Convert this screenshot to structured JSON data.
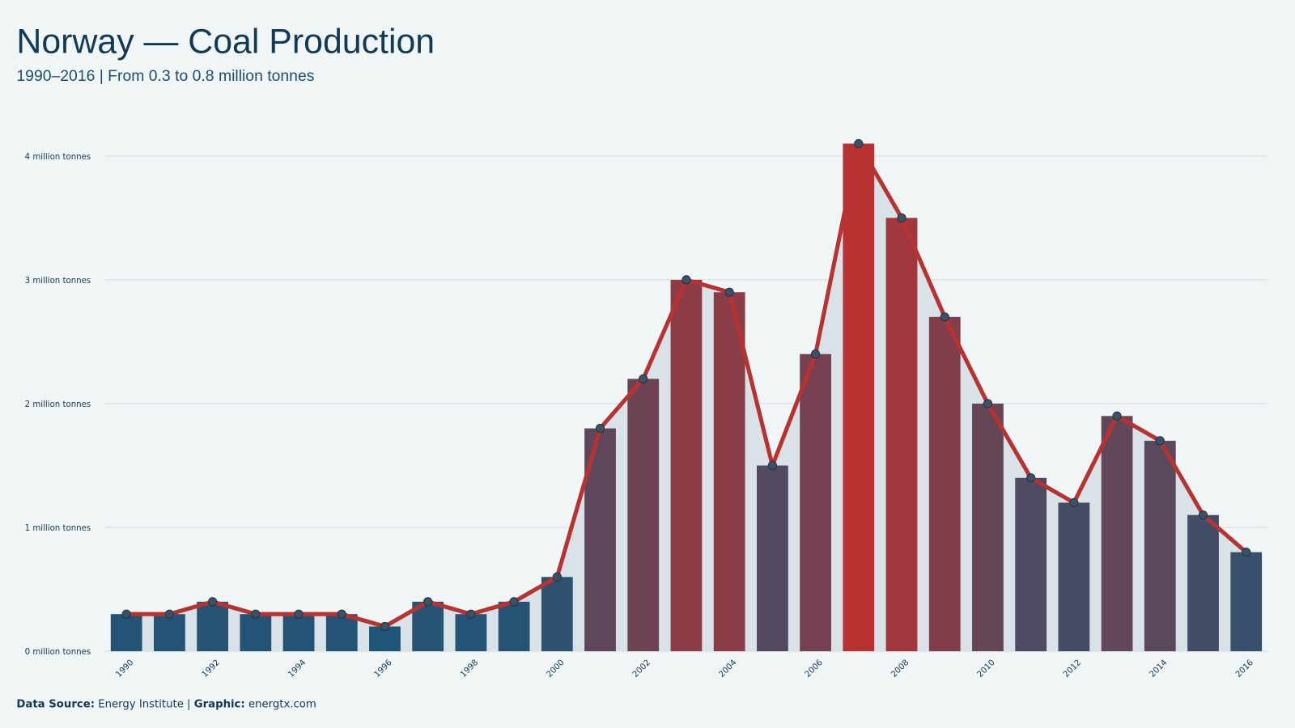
{
  "chart_data": {
    "type": "bar",
    "title": "Norway — Coal Production",
    "subtitle": "1990–2016 | From 0.3 to 0.8 million tonnes",
    "categories": [
      "1990",
      null,
      "1992",
      null,
      "1994",
      null,
      "1996",
      null,
      "1998",
      null,
      "2000",
      null,
      "2002",
      null,
      "2004",
      null,
      "2006",
      null,
      "2008",
      null,
      "2010",
      null,
      "2012",
      null,
      "2014",
      null,
      "2016"
    ],
    "values": [
      0.3,
      0.3,
      0.4,
      0.3,
      0.3,
      0.3,
      0.2,
      0.4,
      0.3,
      0.4,
      0.6,
      1.8,
      2.2,
      3.0,
      2.9,
      1.5,
      2.4,
      4.1,
      3.5,
      2.7,
      2.0,
      1.4,
      1.2,
      1.9,
      1.7,
      1.1,
      0.8
    ],
    "color_scale": [
      "#1f5577",
      "#b83232"
    ],
    "line_color": "#b83232",
    "area_color": "#d9e2e6",
    "marker_color": "#3c5166",
    "ylim": [
      0,
      4
    ],
    "yticks": [
      {
        "value": 0,
        "label": "0 million tonnes"
      },
      {
        "value": 1,
        "label": "1 million tonnes"
      },
      {
        "value": 2,
        "label": "2 million tonnes"
      },
      {
        "value": 3,
        "label": "3 million tonnes"
      },
      {
        "value": 4,
        "label": "4 million tonnes"
      }
    ],
    "grid": true,
    "footer": {
      "source_label": "Data Source:",
      "source": "Energy Institute |",
      "graphic_label": "Graphic:",
      "graphic": "energtx.com"
    }
  }
}
